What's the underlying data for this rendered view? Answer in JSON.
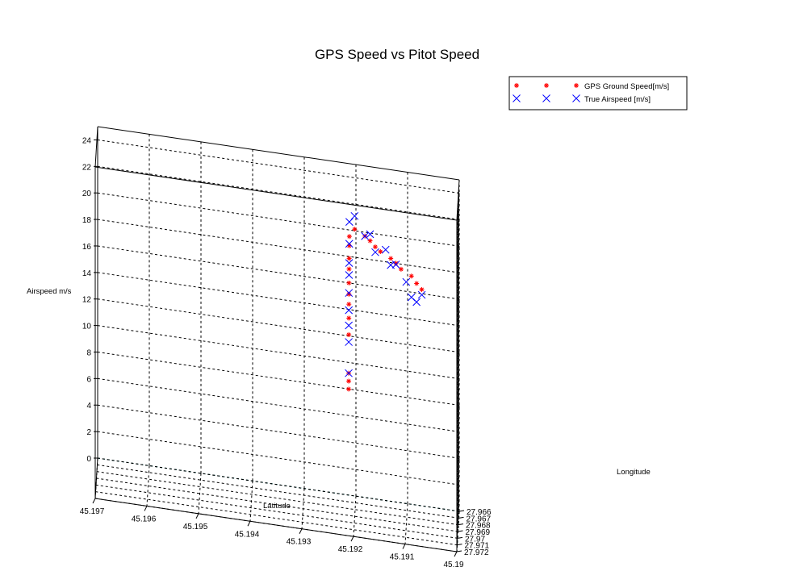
{
  "chart_data": {
    "type": "scatter3d",
    "title": "GPS Speed vs Pitot Speed",
    "xlabel": "Latitude",
    "ylabel": "Longitude",
    "zlabel": "Airspeed m/s",
    "xlim": [
      45.19,
      45.197
    ],
    "ylim": [
      27.966,
      27.972
    ],
    "zlim": [
      0,
      25
    ],
    "x_ticks": [
      45.197,
      45.196,
      45.195,
      45.194,
      45.193,
      45.192,
      45.191,
      45.19
    ],
    "x_tick_labels": [
      "45.197",
      "45.196",
      "45.195",
      "45.194",
      "45.193",
      "45.192",
      "45.191",
      "45.19"
    ],
    "y_ticks": [
      27.966,
      27.967,
      27.968,
      27.969,
      27.97,
      27.971,
      27.972
    ],
    "y_tick_labels": [
      "27.966",
      "27.967",
      "27.968",
      "27.969",
      "27.97",
      "27.971",
      "27.972"
    ],
    "z_ticks": [
      0,
      2,
      4,
      6,
      8,
      10,
      12,
      14,
      16,
      18,
      20,
      22,
      24
    ],
    "z_tick_labels": [
      "0",
      "2",
      "4",
      "6",
      "8",
      "10",
      "12",
      "14",
      "16",
      "18",
      "20",
      "22",
      "24"
    ],
    "grid": true,
    "legend_position": "top-right",
    "colors": {
      "gps": "#ff0000",
      "airspeed": "#0000ff",
      "grid": "#000000",
      "axis": "#00c0c0"
    },
    "series": [
      {
        "name": "GPS Ground Speed[m/s]",
        "marker": "asterisk",
        "points": [
          {
            "lat": 45.1921,
            "lon": 27.9711,
            "z": 10.6
          },
          {
            "lat": 45.1921,
            "lon": 27.9711,
            "z": 11.2
          },
          {
            "lat": 45.1921,
            "lon": 27.9711,
            "z": 11.8
          },
          {
            "lat": 45.1921,
            "lon": 27.9709,
            "z": 14.6
          },
          {
            "lat": 45.1921,
            "lon": 27.9708,
            "z": 15.8
          },
          {
            "lat": 45.1921,
            "lon": 27.9707,
            "z": 16.8
          },
          {
            "lat": 45.1921,
            "lon": 27.9706,
            "z": 17.5
          },
          {
            "lat": 45.1921,
            "lon": 27.9705,
            "z": 18.3
          },
          {
            "lat": 45.1921,
            "lon": 27.9702,
            "z": 19.2
          },
          {
            "lat": 45.1921,
            "lon": 27.97,
            "z": 19.9
          },
          {
            "lat": 45.1921,
            "lon": 27.9697,
            "z": 20.7
          },
          {
            "lat": 45.1921,
            "lon": 27.9695,
            "z": 21.3
          },
          {
            "lat": 45.192,
            "lon": 27.9693,
            "z": 21.8
          },
          {
            "lat": 45.1918,
            "lon": 27.9693,
            "z": 21.4
          },
          {
            "lat": 45.1917,
            "lon": 27.9693,
            "z": 21.1
          },
          {
            "lat": 45.1916,
            "lon": 27.9693,
            "z": 20.7
          },
          {
            "lat": 45.1915,
            "lon": 27.9693,
            "z": 20.4
          },
          {
            "lat": 45.1913,
            "lon": 27.9693,
            "z": 20.0
          },
          {
            "lat": 45.1912,
            "lon": 27.9693,
            "z": 19.7
          },
          {
            "lat": 45.1911,
            "lon": 27.9693,
            "z": 19.3
          },
          {
            "lat": 45.1909,
            "lon": 27.9693,
            "z": 18.9
          },
          {
            "lat": 45.1908,
            "lon": 27.9693,
            "z": 18.4
          },
          {
            "lat": 45.1907,
            "lon": 27.9693,
            "z": 18.0
          }
        ]
      },
      {
        "name": "True Airspeed [m/s]",
        "marker": "cross",
        "points": [
          {
            "lat": 45.1921,
            "lon": 27.9711,
            "z": 11.8
          },
          {
            "lat": 45.1921,
            "lon": 27.971,
            "z": 14.1
          },
          {
            "lat": 45.1921,
            "lon": 27.9709,
            "z": 15.3
          },
          {
            "lat": 45.1921,
            "lon": 27.9708,
            "z": 16.4
          },
          {
            "lat": 45.1921,
            "lon": 27.9706,
            "z": 17.6
          },
          {
            "lat": 45.1921,
            "lon": 27.9703,
            "z": 18.8
          },
          {
            "lat": 45.1921,
            "lon": 27.9701,
            "z": 19.6
          },
          {
            "lat": 45.1921,
            "lon": 27.9698,
            "z": 20.9
          },
          {
            "lat": 45.1921,
            "lon": 27.9695,
            "z": 22.4
          },
          {
            "lat": 45.192,
            "lon": 27.9693,
            "z": 22.8
          },
          {
            "lat": 45.1918,
            "lon": 27.9693,
            "z": 21.4
          },
          {
            "lat": 45.1917,
            "lon": 27.9693,
            "z": 21.6
          },
          {
            "lat": 45.1916,
            "lon": 27.9693,
            "z": 20.3
          },
          {
            "lat": 45.1914,
            "lon": 27.9693,
            "z": 20.6
          },
          {
            "lat": 45.1913,
            "lon": 27.9693,
            "z": 19.5
          },
          {
            "lat": 45.1912,
            "lon": 27.9693,
            "z": 19.6
          },
          {
            "lat": 45.191,
            "lon": 27.9693,
            "z": 18.4
          },
          {
            "lat": 45.1909,
            "lon": 27.9693,
            "z": 17.3
          },
          {
            "lat": 45.1908,
            "lon": 27.9693,
            "z": 17.0
          },
          {
            "lat": 45.1907,
            "lon": 27.9693,
            "z": 17.6
          }
        ]
      }
    ]
  }
}
